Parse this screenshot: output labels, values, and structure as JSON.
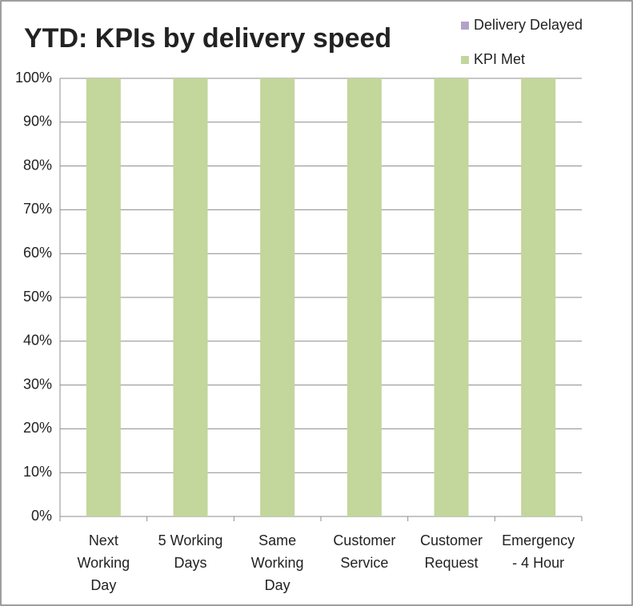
{
  "chart_data": {
    "type": "stacked-bar",
    "title": "YTD: KPIs by delivery speed",
    "categories": [
      "Next Working Day",
      "5 Working Days",
      "Same Working Day",
      "Customer Service",
      "Customer Request",
      "Emergency - 4 Hour"
    ],
    "series": [
      {
        "name": "KPI Met",
        "color": "#c3d69b",
        "values": [
          100,
          100,
          100,
          100,
          100,
          100
        ]
      },
      {
        "name": "Delivery Delayed",
        "color": "#b3a2c7",
        "values": [
          0,
          0,
          0,
          0,
          0,
          0
        ]
      }
    ],
    "ylim": [
      0,
      100
    ],
    "yticks": [
      {
        "value": 0,
        "label": "0%"
      },
      {
        "value": 10,
        "label": "10%"
      },
      {
        "value": 20,
        "label": "20%"
      },
      {
        "value": 30,
        "label": "30%"
      },
      {
        "value": 40,
        "label": "40%"
      },
      {
        "value": 50,
        "label": "50%"
      },
      {
        "value": 60,
        "label": "60%"
      },
      {
        "value": 70,
        "label": "70%"
      },
      {
        "value": 80,
        "label": "80%"
      },
      {
        "value": 90,
        "label": "90%"
      },
      {
        "value": 100,
        "label": "100%"
      }
    ],
    "grid": true,
    "legend": "top-right"
  }
}
